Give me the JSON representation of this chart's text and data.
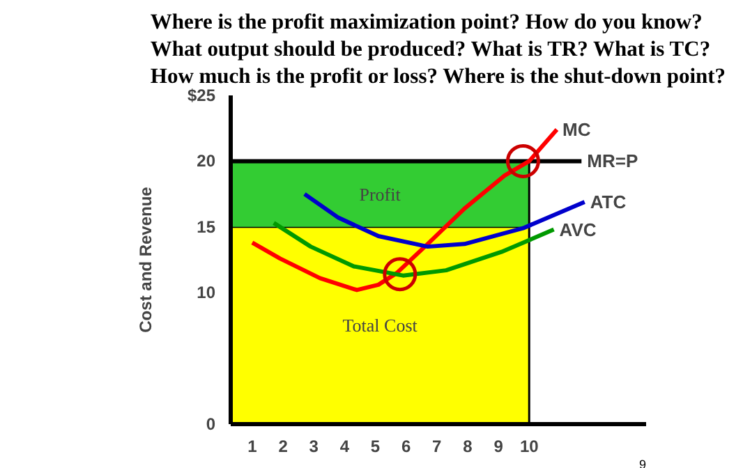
{
  "chart_data": {
    "type": "line",
    "title": "Where is the profit maximization point? How do you know?\nWhat output should be produced? What is TR? What is TC?\nHow much is the profit or loss? Where is the shut-down point?",
    "ylabel": "Cost and Revenue",
    "stacked": true,
    "xlim": [
      0.3,
      13.8
    ],
    "xticks": [
      1,
      2,
      3,
      4,
      5,
      6,
      7,
      8,
      9,
      10
    ],
    "ylim": [
      0,
      25
    ],
    "yticks": [
      0,
      10,
      15,
      20,
      {
        "value": 25,
        "label": "$25"
      }
    ],
    "grid": false,
    "series": [
      {
        "name": "Total Cost",
        "type": "area",
        "x": [
          0.3,
          10
        ],
        "values": [
          15,
          15
        ],
        "color": "#ffff00"
      },
      {
        "name": "Profit",
        "type": "area",
        "x": [
          0.3,
          10
        ],
        "values": [
          5,
          5
        ],
        "color": "#33cc33"
      },
      {
        "name": "MR=P",
        "x": [
          0.3,
          11.7
        ],
        "values": [
          20,
          20
        ],
        "color": "#000000"
      },
      {
        "name": "MC",
        "x": [
          1.0,
          1.9,
          3.2,
          4.4,
          5.1,
          5.7,
          6.7,
          7.9,
          9.2,
          10.0,
          10.9
        ],
        "values": [
          13.8,
          12.6,
          11.1,
          10.2,
          10.6,
          11.5,
          13.7,
          16.4,
          18.9,
          20.0,
          22.4
        ],
        "color": "#ff0000"
      },
      {
        "name": "ATC",
        "x": [
          2.7,
          3.8,
          5.1,
          6.7,
          7.9,
          9.8,
          11.8
        ],
        "values": [
          17.5,
          15.7,
          14.3,
          13.5,
          13.7,
          14.9,
          16.9
        ],
        "color": "#0000cc"
      },
      {
        "name": "AVC",
        "x": [
          1.7,
          2.9,
          4.3,
          5.9,
          7.3,
          9.1,
          10.8
        ],
        "values": [
          15.3,
          13.5,
          12.0,
          11.3,
          11.7,
          13.1,
          14.8
        ],
        "color": "#009900"
      },
      {
        "type": "scatter",
        "x": [
          9.8,
          5.8
        ],
        "values": [
          20,
          11.4
        ],
        "color": "#cc0000",
        "marker": "circle"
      }
    ],
    "annotations": [
      "9"
    ]
  }
}
